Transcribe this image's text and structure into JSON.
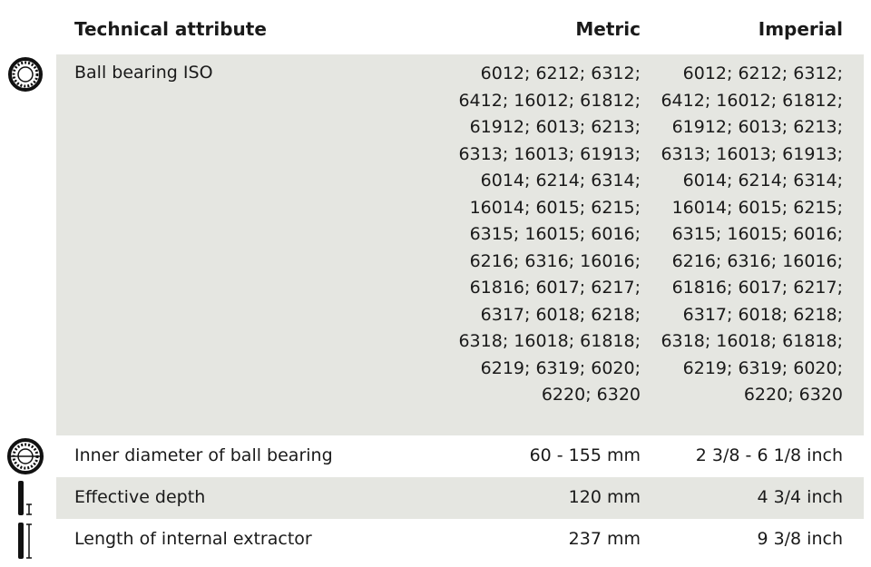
{
  "table": {
    "header": [
      "Technical attribute",
      "Metric",
      "Imperial"
    ],
    "rows": [
      {
        "attribute": "Ball bearing ISO",
        "metric": [
          "6012; 6212; 6312;",
          "6412; 16012; 61812;",
          "61912; 6013; 6213;",
          "6313; 16013; 61913;",
          "6014; 6214; 6314;",
          "16014; 6015; 6215;",
          "6315; 16015; 6016;",
          "6216; 6316; 16016;",
          "61816; 6017; 6217;",
          "6317; 6018; 6218;",
          "6318; 16018; 61818;",
          "6219; 6319; 6020;",
          "6220; 6320"
        ],
        "imperial": [
          "6012; 6212; 6312;",
          "6412; 16012; 61812;",
          "61912; 6013; 6213;",
          "6313; 16013; 61913;",
          "6014; 6214; 6314;",
          "16014; 6015; 6215;",
          "6315; 16015; 6016;",
          "6216; 6316; 16016;",
          "61816; 6017; 6217;",
          "6317; 6018; 6218;",
          "6318; 16018; 61818;",
          "6219; 6319; 6020;",
          "6220; 6320"
        ]
      },
      {
        "attribute": "Inner diameter of ball bearing",
        "metric": "60 - 155 mm",
        "imperial": "2 3/8 - 6 1/8 inch"
      },
      {
        "attribute": "Effective depth",
        "metric": "120 mm",
        "imperial": "4 3/4 inch"
      },
      {
        "attribute": "Length of internal extractor",
        "metric": "237 mm",
        "imperial": "9 3/8 inch"
      }
    ]
  }
}
